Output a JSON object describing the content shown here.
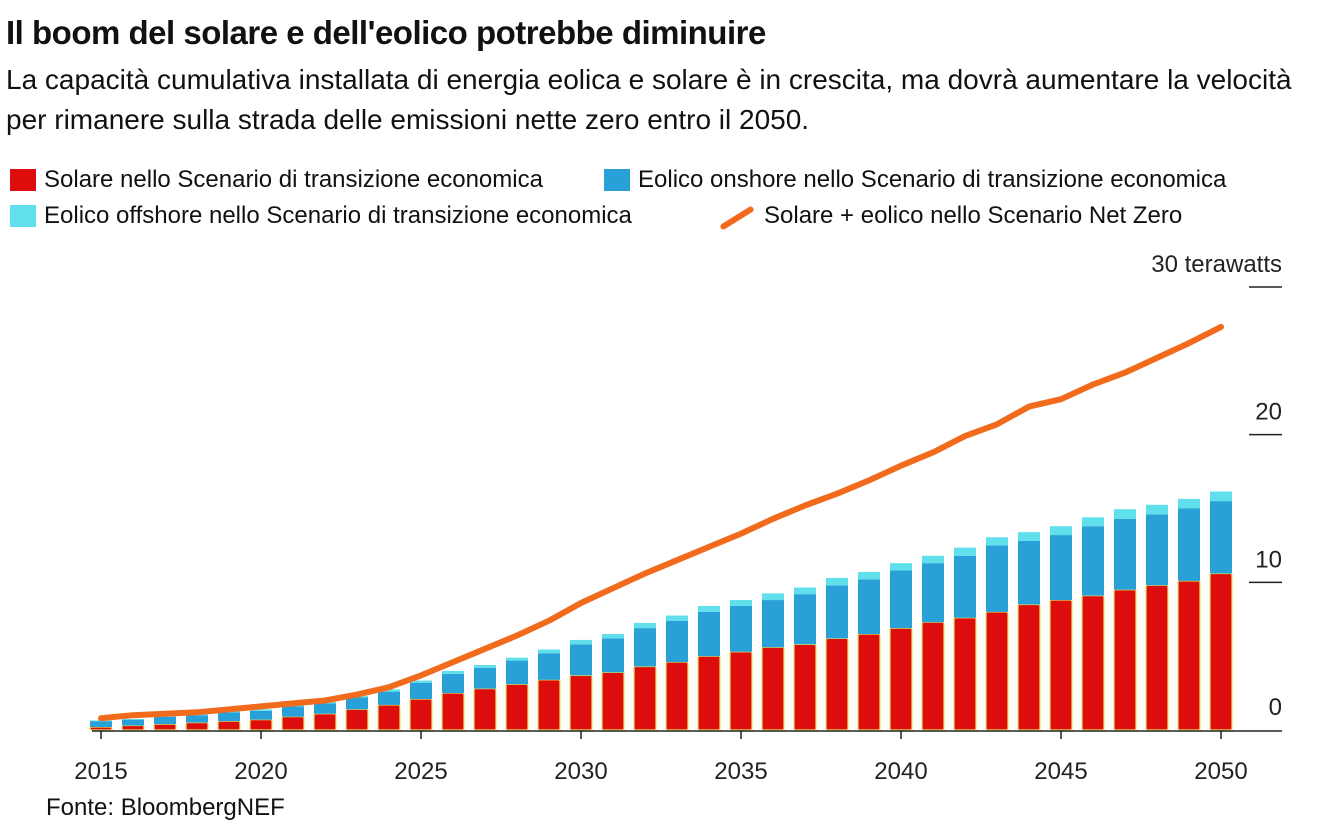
{
  "chart_data": {
    "type": "bar",
    "title": "Il boom del solare e dell'eolico potrebbe diminuire",
    "subtitle": "La capacità cumulativa installata di energia eolica e solare è in crescita, ma dovrà aumentare la velocità per rimanere sulla strada delle emissioni nette zero entro il 2050.",
    "source": "Fonte: BloombergNEF",
    "unit_label": "terawatts",
    "y_ticks": [
      {
        "value": 0,
        "label": "0"
      },
      {
        "value": 10,
        "label": "10"
      },
      {
        "value": 20,
        "label": "20"
      },
      {
        "value": 30,
        "label": "30 terawatts"
      }
    ],
    "ylim": [
      0,
      30
    ],
    "x_ticks": [
      2015,
      2020,
      2025,
      2030,
      2035,
      2040,
      2045,
      2050
    ],
    "x": [
      2015,
      2016,
      2017,
      2018,
      2019,
      2020,
      2021,
      2022,
      2023,
      2024,
      2025,
      2026,
      2027,
      2028,
      2029,
      2030,
      2031,
      2032,
      2033,
      2034,
      2035,
      2036,
      2037,
      2038,
      2039,
      2040,
      2041,
      2042,
      2043,
      2044,
      2045,
      2046,
      2047,
      2048,
      2049,
      2050
    ],
    "series": [
      {
        "name": "Solare nello Scenario di transizione economica",
        "kind": "bar",
        "color": "#dd0d0d",
        "values": [
          0.2,
          0.3,
          0.4,
          0.5,
          0.6,
          0.7,
          0.9,
          1.1,
          1.4,
          1.7,
          2.1,
          2.5,
          2.8,
          3.1,
          3.4,
          3.7,
          3.9,
          4.3,
          4.6,
          5.0,
          5.3,
          5.6,
          5.8,
          6.2,
          6.5,
          6.9,
          7.3,
          7.6,
          8.0,
          8.5,
          8.8,
          9.1,
          9.5,
          9.8,
          10.1,
          10.6
        ]
      },
      {
        "name": "Eolico onshore nello Scenario di transizione economica",
        "kind": "bar",
        "color": "#2aa0d8",
        "values": [
          0.4,
          0.4,
          0.5,
          0.5,
          0.6,
          0.6,
          0.7,
          0.7,
          0.8,
          0.9,
          1.1,
          1.3,
          1.4,
          1.6,
          1.8,
          2.1,
          2.3,
          2.6,
          2.8,
          3.0,
          3.1,
          3.2,
          3.4,
          3.6,
          3.7,
          3.9,
          4.0,
          4.2,
          4.5,
          4.3,
          4.4,
          4.7,
          4.8,
          4.8,
          4.9,
          4.9
        ]
      },
      {
        "name": "Eolico offshore nello Scenario di transizione economica",
        "kind": "bar",
        "color": "#5fe0ea",
        "values": [
          0.05,
          0.05,
          0.05,
          0.1,
          0.1,
          0.1,
          0.1,
          0.1,
          0.1,
          0.15,
          0.15,
          0.2,
          0.2,
          0.2,
          0.25,
          0.3,
          0.3,
          0.35,
          0.35,
          0.4,
          0.4,
          0.45,
          0.45,
          0.5,
          0.5,
          0.5,
          0.5,
          0.55,
          0.55,
          0.6,
          0.6,
          0.6,
          0.65,
          0.65,
          0.65,
          0.65
        ]
      },
      {
        "name": "Solare + eolico nello Scenario Net Zero",
        "kind": "line",
        "color": "#f26b1d",
        "values": [
          0.8,
          1.0,
          1.1,
          1.2,
          1.4,
          1.6,
          1.8,
          2.0,
          2.4,
          2.9,
          3.7,
          4.6,
          5.5,
          6.4,
          7.4,
          8.6,
          9.6,
          10.6,
          11.5,
          12.4,
          13.3,
          14.3,
          15.2,
          16.0,
          16.9,
          17.9,
          18.8,
          19.9,
          20.7,
          21.9,
          22.4,
          23.4,
          24.2,
          25.2,
          26.2,
          27.3
        ]
      }
    ]
  }
}
